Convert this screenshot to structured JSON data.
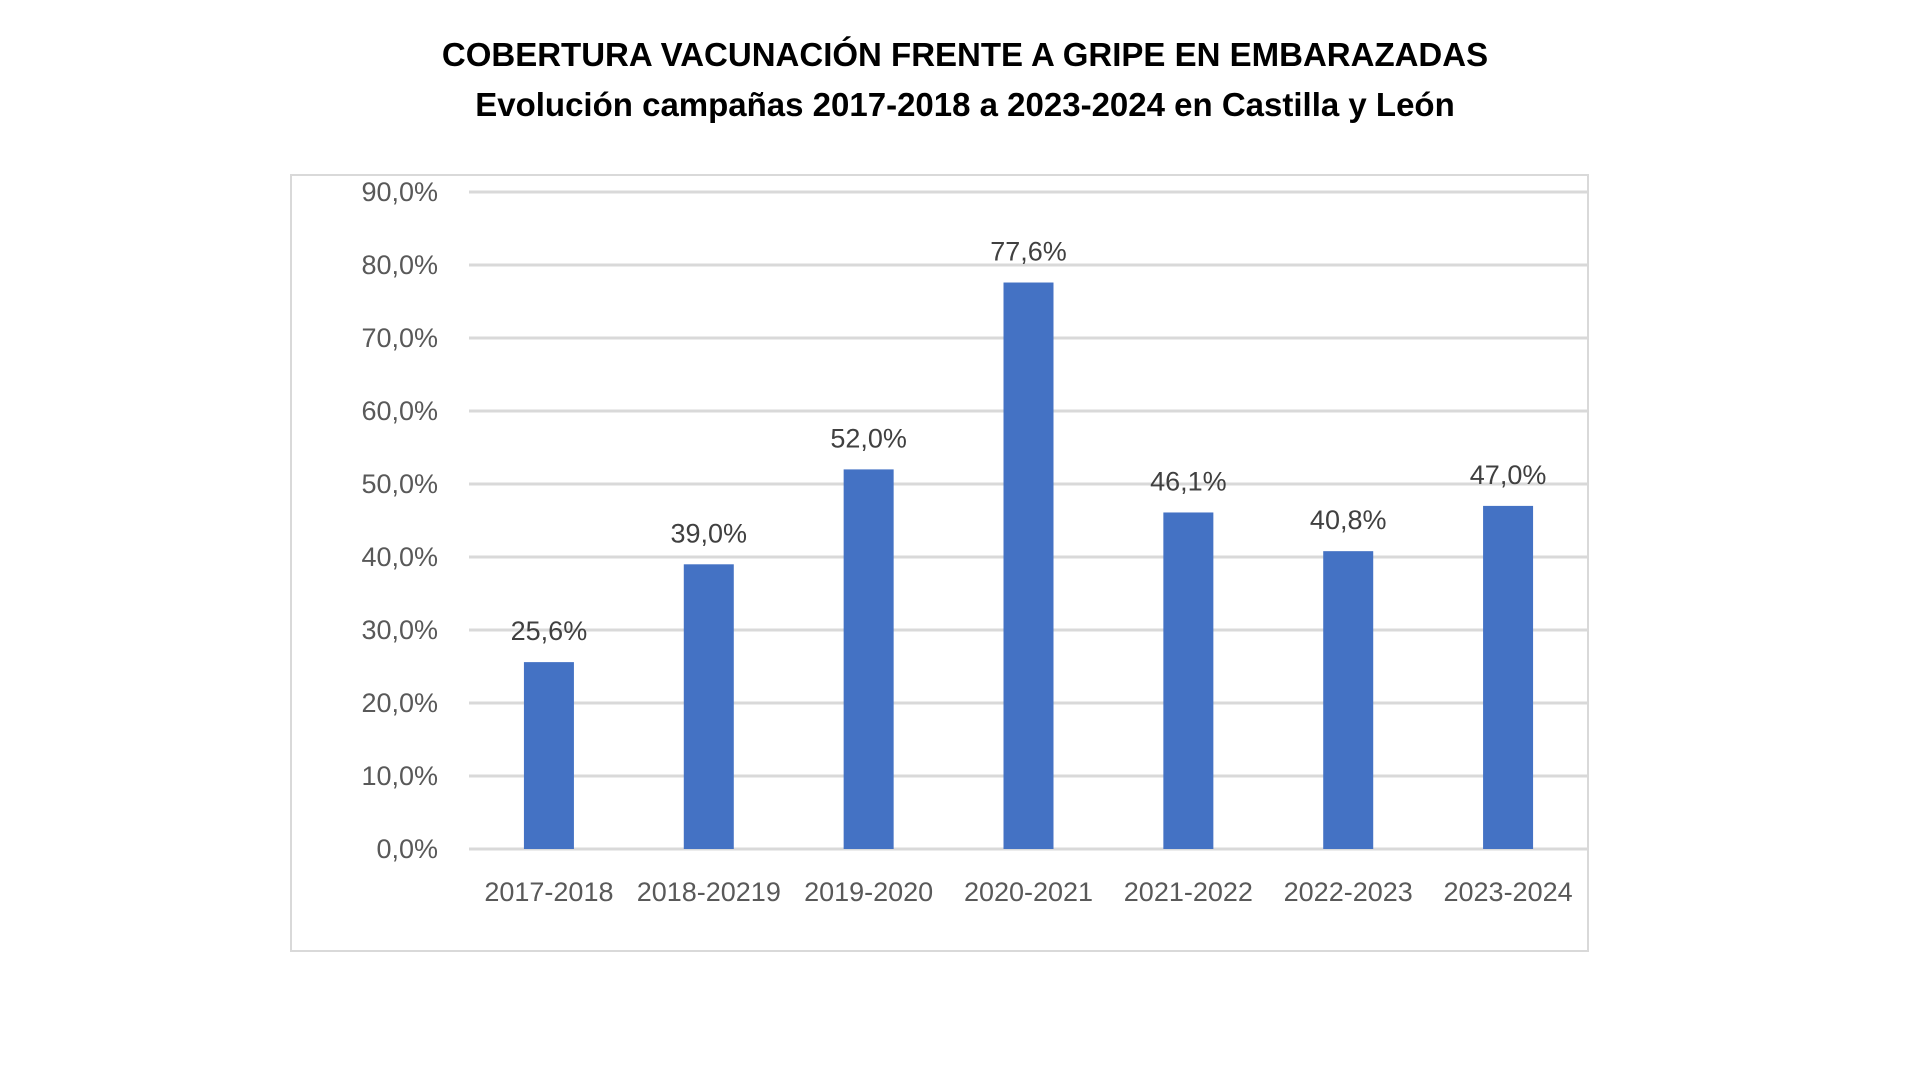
{
  "chart_data": {
    "type": "bar",
    "title": "COBERTURA VACUNACIÓN FRENTE A GRIPE EN EMBARAZADAS",
    "subtitle": "Evolución campañas 2017-2018 a 2023-2024 en Castilla y León",
    "categories": [
      "2017-2018",
      "2018-20219",
      "2019-2020",
      "2020-2021",
      "2021-2022",
      "2022-2023",
      "2023-2024"
    ],
    "values": [
      25.6,
      39.0,
      52.0,
      77.6,
      46.1,
      40.8,
      47.0
    ],
    "data_labels": [
      "25,6%",
      "39,0%",
      "52,0%",
      "77,6%",
      "46,1%",
      "40,8%",
      "47,0%"
    ],
    "y_ticks": [
      "0,0%",
      "10,0%",
      "20,0%",
      "30,0%",
      "40,0%",
      "50,0%",
      "60,0%",
      "70,0%",
      "80,0%",
      "90,0%"
    ],
    "ylim": [
      0,
      90
    ],
    "xlabel": "",
    "ylabel": "",
    "grid": true,
    "legend": "none",
    "bar_color": "#4472C4"
  }
}
